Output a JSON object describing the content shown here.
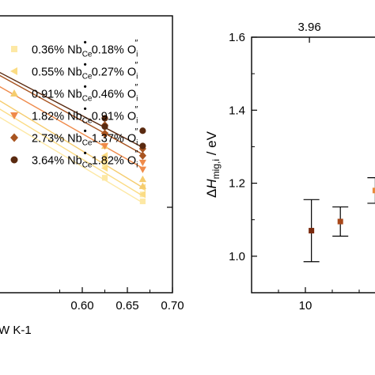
{
  "chart_data": [
    {
      "type": "scatter",
      "xlabel": "K-1",
      "x_ticks": [
        "0.60",
        "0.65",
        "0.70"
      ],
      "xlim": [
        0.5,
        0.7
      ],
      "ylim": [
        0,
        10
      ],
      "grid": false,
      "legend_position": "top-right",
      "series": [
        {
          "name": "0.36% NbCe 0.18% Oi",
          "dopant": "0.36%",
          "vacancy": "0.18%",
          "marker": "square",
          "color": "#fde8a4",
          "points": [
            [
              0.625,
              4.65
            ],
            [
              0.625,
              4.15
            ],
            [
              0.667,
              3.55
            ],
            [
              0.667,
              3.3
            ]
          ],
          "fit": [
            [
              0.5,
              6.5
            ],
            [
              0.667,
              3.25
            ]
          ]
        },
        {
          "name": "0.55% NbCe 0.27% Oi",
          "dopant": "0.55%",
          "vacancy": "0.27%",
          "marker": "triangle-left",
          "color": "#fbdc84",
          "points": [
            [
              0.625,
              4.95
            ],
            [
              0.625,
              4.5
            ],
            [
              0.667,
              3.8
            ],
            [
              0.667,
              3.55
            ]
          ],
          "fit": [
            [
              0.5,
              6.8
            ],
            [
              0.667,
              3.5
            ]
          ]
        },
        {
          "name": "0.91% NbCe 0.46% Oi",
          "dopant": "0.91%",
          "vacancy": "0.46%",
          "marker": "triangle-up",
          "color": "#f5cc6e",
          "points": [
            [
              0.625,
              5.3
            ],
            [
              0.625,
              4.85
            ],
            [
              0.667,
              4.1
            ],
            [
              0.667,
              3.85
            ]
          ],
          "fit": [
            [
              0.5,
              7.1
            ],
            [
              0.667,
              3.8
            ]
          ]
        },
        {
          "name": "1.82% NbCe 0.91% Oi",
          "dopant": "1.82%",
          "vacancy": "0.91%",
          "marker": "triangle-down",
          "color": "#ef8a4a",
          "points": [
            [
              0.625,
              5.7
            ],
            [
              0.625,
              5.3
            ],
            [
              0.667,
              4.7
            ],
            [
              0.667,
              4.45
            ]
          ],
          "fit": [
            [
              0.5,
              7.6
            ],
            [
              0.667,
              4.5
            ]
          ]
        },
        {
          "name": "2.73% NbCe 1.37% Oi",
          "dopant": "2.73%",
          "vacancy": "1.37%",
          "marker": "diamond",
          "color": "#a85420",
          "points": [
            [
              0.625,
              6.05
            ],
            [
              0.625,
              5.75
            ],
            [
              0.667,
              5.2
            ],
            [
              0.667,
              4.95
            ]
          ],
          "fit": [
            [
              0.5,
              8.0
            ],
            [
              0.667,
              5.0
            ]
          ]
        },
        {
          "name": "3.64% NbCe 1.82% Oi",
          "dopant": "3.64%",
          "vacancy": "1.82%",
          "marker": "circle",
          "color": "#5a2a10",
          "points": [
            [
              0.625,
              6.3
            ],
            [
              0.625,
              6.0
            ],
            [
              0.667,
              5.85
            ],
            [
              0.667,
              5.3
            ]
          ],
          "fit": [
            [
              0.5,
              8.1
            ],
            [
              0.667,
              5.25
            ]
          ]
        }
      ]
    },
    {
      "type": "scatter",
      "ylabel": "ΔHmig,i / eV",
      "ylabel_parts": {
        "delta": "Δ",
        "h": "H",
        "sub": "mig,i",
        "unit": " / eV"
      },
      "top_axis_ticks": [
        "3.96"
      ],
      "x_ticks": [
        "10"
      ],
      "y_ticks": [
        "1.0",
        "1.2",
        "1.4",
        "1.6"
      ],
      "xlim": [
        6,
        16
      ],
      "ylim": [
        0.9,
        1.6
      ],
      "grid": false,
      "series": [
        {
          "color": "#7a2a0e",
          "x": 10.45,
          "y": 1.07,
          "yerr": 0.085
        },
        {
          "color": "#a8481a",
          "x": 12.6,
          "y": 1.095,
          "yerr": 0.04
        },
        {
          "color": "#e88a3c",
          "x": 15.2,
          "y": 1.18,
          "yerr": 0.035
        }
      ]
    }
  ]
}
